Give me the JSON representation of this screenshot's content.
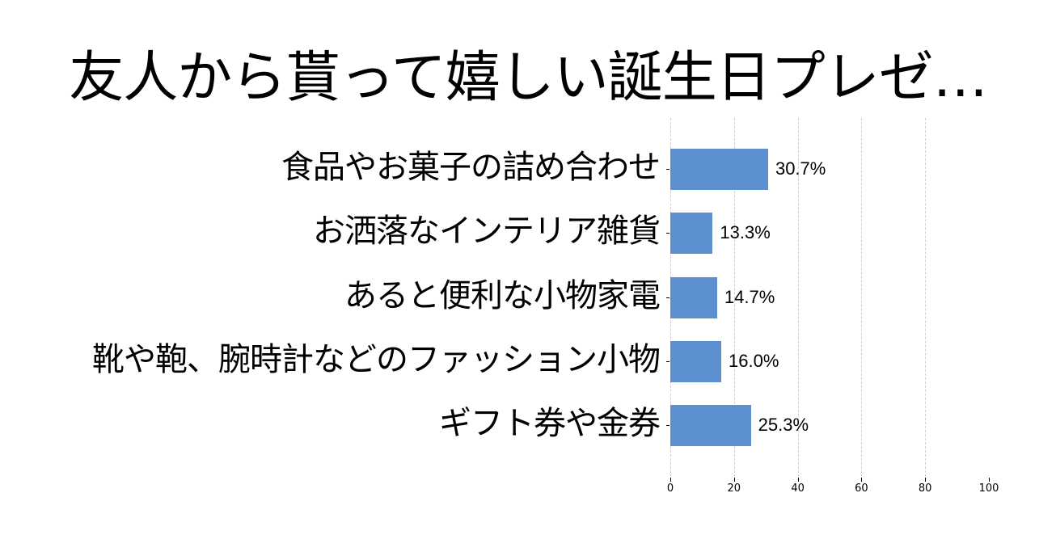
{
  "title": "友人から貰って嬉しい誕生日プレゼ…",
  "colors": {
    "bar": "#5b8fd0",
    "grid": "#cfcfcf",
    "text": "#000000",
    "background": "#ffffff"
  },
  "chart_data": {
    "type": "bar",
    "orientation": "horizontal",
    "title": "友人から貰って嬉しい誕生日プレゼ…",
    "categories": [
      "食品やお菓子の詰め合わせ",
      "お洒落なインテリア雑貨",
      "あると便利な小物家電",
      "靴や鞄、腕時計などのファッション小物",
      "ギフト券や金券"
    ],
    "values": [
      30.7,
      13.3,
      14.7,
      16.0,
      25.3
    ],
    "value_labels": [
      "30.7%",
      "13.3%",
      "14.7%",
      "16.0%",
      "25.3%"
    ],
    "xlabel": "",
    "ylabel": "",
    "xlim": [
      0,
      100
    ],
    "xticks": [
      "0",
      "20",
      "40",
      "60",
      "80",
      "100"
    ],
    "grid": "vertical dashed",
    "legend": "none"
  }
}
